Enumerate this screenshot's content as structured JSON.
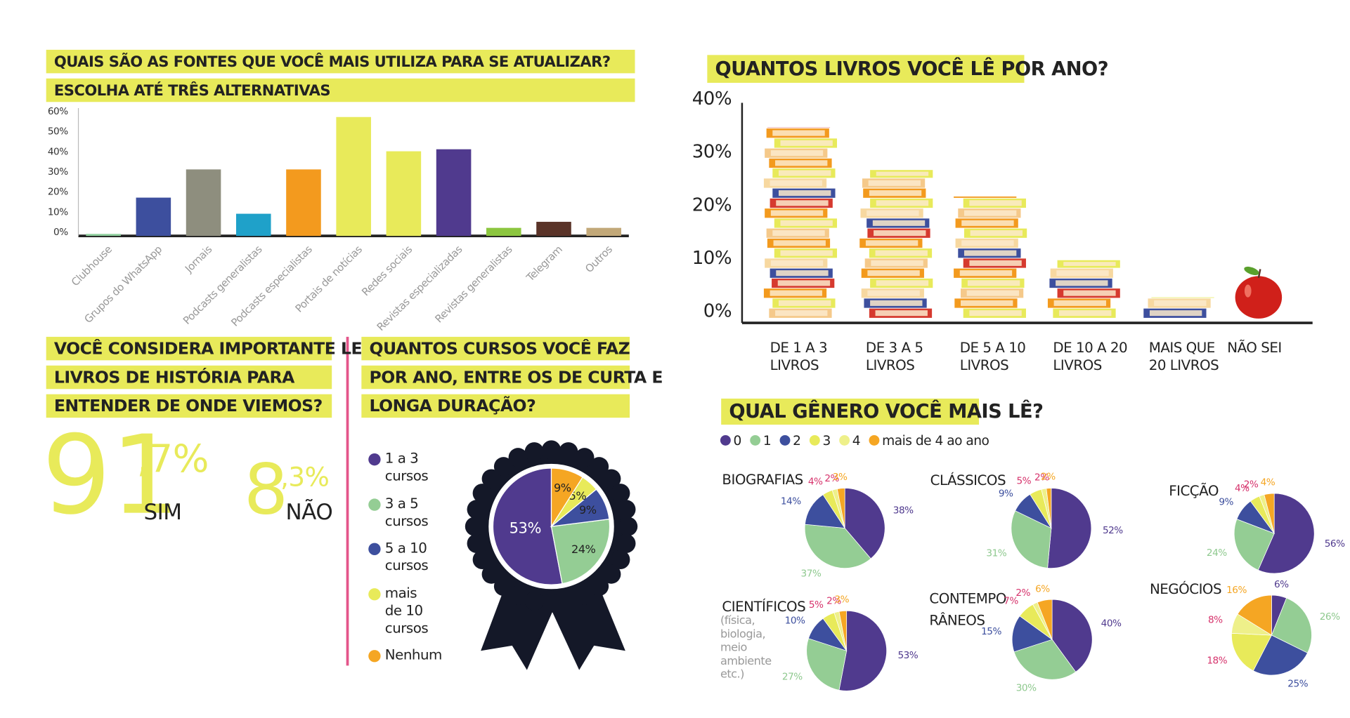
{
  "chart_data": [
    {
      "type": "bar",
      "title": [
        "QUAIS SÃO AS FONTES QUE VOCÊ MAIS UTILIZA PARA SE ATUALIZAR?",
        "ESCOLHA ATÉ TRÊS ALTERNATIVAS"
      ],
      "categories": [
        "Clubhouse",
        "Grupos do WhatsApp",
        "Jornais",
        "Podcasts generalistas",
        "Podcasts especialistas",
        "Portais de notícias",
        "Redes sociais",
        "Revistas especializadas",
        "Revistas generalistas",
        "Telegram",
        "Outros"
      ],
      "values": [
        1,
        19,
        33,
        11,
        33,
        59,
        42,
        43,
        4,
        7,
        4
      ],
      "colors": [
        "#8fcf9e",
        "#3d4f9e",
        "#8e8e7e",
        "#1fa1c9",
        "#f39a1e",
        "#e8ea5a",
        "#e8ea5a",
        "#503a8e",
        "#8cc63f",
        "#5a3328",
        "#c2a878"
      ],
      "ylim": [
        0,
        60
      ],
      "yticks": [
        {
          "value": 0,
          "label": "0%"
        },
        {
          "value": 10,
          "label": "10%"
        },
        {
          "value": 20,
          "label": "20%"
        },
        {
          "value": 30,
          "label": "30%"
        },
        {
          "value": 40,
          "label": "40%"
        },
        {
          "value": 50,
          "label": "50%"
        },
        {
          "value": 60,
          "label": "60%"
        }
      ]
    },
    {
      "type": "stat",
      "title": [
        "VOCÊ CONSIDERA IMPORTANTE LER",
        "LIVROS DE HISTÓRIA PARA",
        "ENTENDER DE ONDE VIEMOS?"
      ],
      "categories": [
        "SIM",
        "NÃO"
      ],
      "values": [
        91.7,
        8.3
      ],
      "value_labels": [
        [
          "91",
          ",7%"
        ],
        [
          "8",
          ",3%"
        ]
      ],
      "color": "#e8ea5a"
    },
    {
      "type": "pie",
      "title": [
        "QUANTOS CURSOS VOCÊ FAZ",
        "POR ANO, ENTRE OS DE CURTA E",
        "LONGA DURAÇÃO?"
      ],
      "categories": [
        "1 a 3 cursos",
        "3 a 5 cursos",
        "5 a 10 cursos",
        "mais de 10 cursos",
        "Nenhum"
      ],
      "values": [
        53,
        24,
        9,
        5,
        9
      ],
      "value_labels": [
        "53%",
        "24%",
        "9%",
        "5%",
        "9%"
      ],
      "colors": [
        "#503a8e",
        "#94cd94",
        "#3d4f9e",
        "#e8ea5a",
        "#f5a623"
      ]
    },
    {
      "type": "pictograph",
      "title": "QUANTOS LIVROS VOCÊ LÊ POR ANO?",
      "categories": [
        "DE 1 A 3 LIVROS",
        "DE 3 A 5 LIVROS",
        "DE 5 A 10 LIVROS",
        "DE 10 A 20 LIVROS",
        "MAIS QUE 20 LIVROS",
        "NÃO SEI"
      ],
      "values": [
        36,
        28,
        23,
        11,
        4,
        8
      ],
      "ylim": [
        0,
        40
      ],
      "yticks": [
        {
          "value": 0,
          "label": "0%"
        },
        {
          "value": 10,
          "label": "10%"
        },
        {
          "value": 20,
          "label": "20%"
        },
        {
          "value": 30,
          "label": "30%"
        },
        {
          "value": 40,
          "label": "40%"
        }
      ]
    },
    {
      "type": "multi-pie",
      "title": "QUAL GÊNERO VOCÊ MAIS LÊ?",
      "legend": [
        "0",
        "1",
        "2",
        "3",
        "4",
        "mais de 4 ao ano"
      ],
      "colors": [
        "#503a8e",
        "#94cd94",
        "#3d4f9e",
        "#e8ea5a",
        "#eef08a",
        "#f5a623"
      ],
      "label_colors": [
        "#503a8e",
        "#8fc98f",
        "#3d4f9e",
        "#d6336c",
        "#d6336c",
        "#f5a623"
      ],
      "pies": [
        {
          "title": [
            "BIOGRAFIAS"
          ],
          "values": [
            38,
            37,
            14,
            4,
            2,
            3
          ],
          "value_labels": [
            "38%",
            "37%",
            "14%",
            "4%",
            "2%",
            "3%"
          ]
        },
        {
          "title": [
            "CLÁSSICOS"
          ],
          "values": [
            52,
            31,
            9,
            5,
            2,
            2
          ],
          "value_labels": [
            "52%",
            "31%",
            "9%",
            "5%",
            "2%",
            "2%"
          ]
        },
        {
          "title": [
            "FICÇÃO"
          ],
          "values": [
            56,
            24,
            9,
            4,
            2,
            4
          ],
          "value_labels": [
            "56%",
            "24%",
            "9%",
            "4%",
            "2%",
            "4%"
          ]
        },
        {
          "title": [
            "CIENTÍFICOS"
          ],
          "note": "(física, biologia, meio ambiente etc.)",
          "values": [
            53,
            27,
            10,
            5,
            2,
            3
          ],
          "value_labels": [
            "53%",
            "27%",
            "10%",
            "5%",
            "2%",
            "3%"
          ]
        },
        {
          "title": [
            "CONTEMPO",
            "RÂNEOS"
          ],
          "values": [
            40,
            30,
            15,
            7,
            2,
            6
          ],
          "value_labels": [
            "40%",
            "30%",
            "15%",
            "7%",
            "2%",
            "6%"
          ]
        },
        {
          "title": [
            "NEGÓCIOS"
          ],
          "values": [
            6,
            26,
            25,
            18,
            8,
            16
          ],
          "value_labels": [
            "6%",
            "26%",
            "25%",
            "18%",
            "8%",
            "16%"
          ]
        }
      ]
    }
  ]
}
